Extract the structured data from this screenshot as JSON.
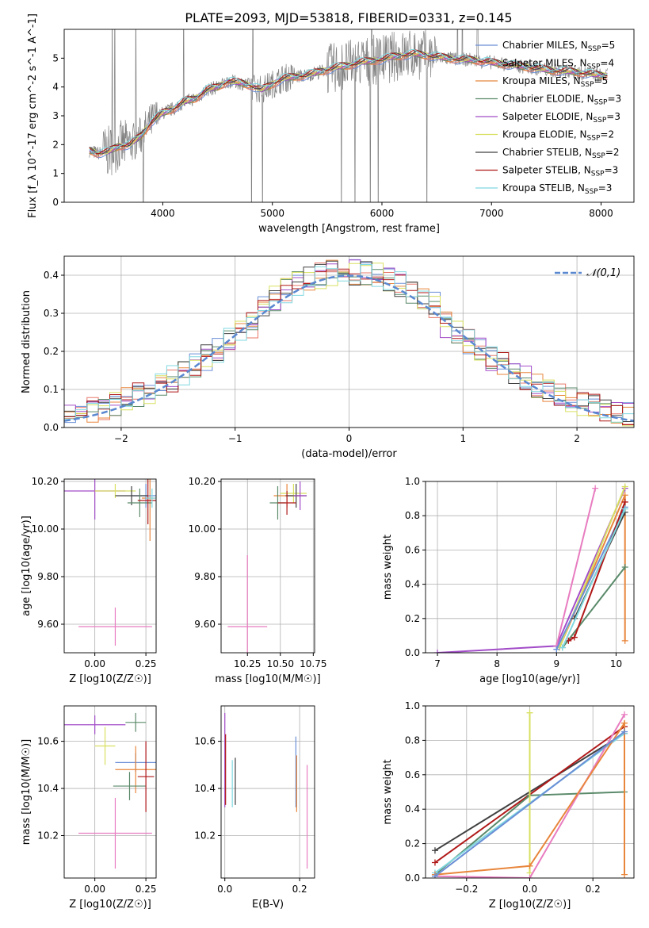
{
  "figure_title": "PLATE=2093, MJD=53818, FIBERID=0331, z=0.145",
  "colors": {
    "c0": "#6a8fd6",
    "c1": "#e8786a",
    "c2": "#e8863c",
    "c3": "#5a8a6a",
    "c4": "#a24cc8",
    "c5": "#d8e060",
    "c6": "#404040",
    "c7": "#b01818",
    "c8": "#80d8e0",
    "data": "#808080",
    "normal": "#5a88d0",
    "pink": "#e87cc0"
  },
  "chart_data": [
    {
      "id": "spectrum",
      "type": "line",
      "xlabel": "wavelength [Angstrom, rest frame]",
      "ylabel": "Flux [f_λ 10^-17 erg cm^-2 s^-1 A^-1]",
      "xlim": [
        3100,
        8300
      ],
      "ylim": [
        0,
        6
      ],
      "xticks": [
        4000,
        5000,
        6000,
        7000,
        8000
      ],
      "yticks": [
        0,
        1,
        2,
        3,
        4,
        5
      ],
      "grid": false,
      "legend_position": "top-right",
      "legend": [
        {
          "label": "Chabrier MILES, N_SSP=5",
          "color": "c0"
        },
        {
          "label": "Salpeter MILES, N_SSP=4",
          "color": "c1"
        },
        {
          "label": "Kroupa MILES, N_SSP=5",
          "color": "c2"
        },
        {
          "label": "Chabrier ELODIE, N_SSP=3",
          "color": "c3"
        },
        {
          "label": "Salpeter ELODIE, N_SSP=3",
          "color": "c4"
        },
        {
          "label": "Kroupa ELODIE, N_SSP=2",
          "color": "c5"
        },
        {
          "label": "Chabrier STELIB, N_SSP=2",
          "color": "c6"
        },
        {
          "label": "Salpeter STELIB, N_SSP=3",
          "color": "c7"
        },
        {
          "label": "Kroupa STELIB, N_SSP=3",
          "color": "c8"
        }
      ],
      "model_x": [
        3330,
        3400,
        3500,
        3600,
        3700,
        3800,
        3900,
        4000,
        4100,
        4200,
        4300,
        4400,
        4500,
        4600,
        4700,
        4800,
        4900,
        5000,
        5100,
        5200,
        5300,
        5400,
        5500,
        5600,
        5700,
        5800,
        5900,
        6000,
        6100,
        6200,
        6300,
        6400,
        6500,
        6600,
        6700,
        6800,
        6900,
        7000,
        7100,
        7200,
        7300,
        7400,
        7500,
        7600,
        7700,
        7800,
        7900,
        8000,
        8060
      ],
      "model_y": [
        1.8,
        1.7,
        1.75,
        1.95,
        2.0,
        2.3,
        2.8,
        3.1,
        3.25,
        3.5,
        3.6,
        3.9,
        4.0,
        4.2,
        4.15,
        4.05,
        3.9,
        4.1,
        4.3,
        4.35,
        4.4,
        4.5,
        4.6,
        4.7,
        4.75,
        4.85,
        4.9,
        4.95,
        5.05,
        5.1,
        5.15,
        5.1,
        5.05,
        5.0,
        4.95,
        4.95,
        4.9,
        4.85,
        4.8,
        4.75,
        4.7,
        4.65,
        4.6,
        4.55,
        4.55,
        4.5,
        4.45,
        4.4,
        4.4
      ]
    },
    {
      "id": "residuals",
      "type": "histogram",
      "xlabel": "(data-model)/error",
      "ylabel": "Normed distribution",
      "xlim": [
        -2.5,
        2.5
      ],
      "ylim": [
        0,
        0.45
      ],
      "xticks": [
        -2,
        -1,
        0,
        1,
        2
      ],
      "yticks": [
        0.0,
        0.1,
        0.2,
        0.3,
        0.4
      ],
      "grid": true,
      "legend_position": "top-right",
      "legend": [
        {
          "label": "𝒩(0,1)",
          "color": "normal"
        }
      ],
      "bin_width": 0.1
    },
    {
      "id": "age_vs_Z",
      "type": "scatter",
      "xlabel": "Z [log10(Z/Z☉)]",
      "ylabel": "age  [log10(age/yr)]",
      "xlim": [
        -0.15,
        0.3
      ],
      "ylim": [
        9.48,
        10.21
      ],
      "xticks": [
        0.0,
        0.25
      ],
      "yticks": [
        9.6,
        9.8,
        10.0,
        10.2
      ],
      "grid": true,
      "points": [
        {
          "x": 0.0,
          "y": 10.16,
          "xerr": 0.15,
          "yerr": 0.12,
          "color": "c4"
        },
        {
          "x": 0.1,
          "y": 10.16,
          "xerr": 0.1,
          "yerr": 0.03,
          "color": "c5"
        },
        {
          "x": 0.27,
          "y": 10.13,
          "xerr": 0.04,
          "yerr": 0.18,
          "color": "c2"
        },
        {
          "x": 0.25,
          "y": 10.14,
          "xerr": 0.07,
          "yerr": 0.05,
          "color": "c0"
        },
        {
          "x": 0.18,
          "y": 10.14,
          "xerr": 0.08,
          "yerr": 0.04,
          "color": "c6"
        },
        {
          "x": 0.22,
          "y": 10.11,
          "xerr": 0.06,
          "yerr": 0.06,
          "color": "c3"
        },
        {
          "x": 0.26,
          "y": 10.12,
          "xerr": 0.05,
          "yerr": 0.1,
          "color": "c7"
        },
        {
          "x": 0.28,
          "y": 10.13,
          "xerr": 0.03,
          "yerr": 0.04,
          "color": "c8"
        },
        {
          "x": 0.1,
          "y": 9.59,
          "xerr": 0.18,
          "yerr": 0.08,
          "color": "pink"
        }
      ]
    },
    {
      "id": "age_vs_mass",
      "type": "scatter",
      "xlabel": "mass [log10(M/M☉)]",
      "ylabel": "",
      "xlim": [
        10.05,
        10.76
      ],
      "ylim": [
        9.48,
        10.21
      ],
      "xticks": [
        10.25,
        10.5,
        10.75
      ],
      "yticks": [
        9.6,
        9.8,
        10.0,
        10.2
      ],
      "grid": true,
      "points": [
        {
          "x": 10.55,
          "y": 10.14,
          "xerr": 0.1,
          "yerr": 0.05,
          "color": "c2"
        },
        {
          "x": 10.6,
          "y": 10.15,
          "xerr": 0.1,
          "yerr": 0.04,
          "color": "c5"
        },
        {
          "x": 10.62,
          "y": 10.14,
          "xerr": 0.08,
          "yerr": 0.05,
          "color": "c6"
        },
        {
          "x": 10.48,
          "y": 10.11,
          "xerr": 0.06,
          "yerr": 0.07,
          "color": "c3"
        },
        {
          "x": 10.55,
          "y": 10.11,
          "xerr": 0.07,
          "yerr": 0.05,
          "color": "c7"
        },
        {
          "x": 10.65,
          "y": 10.14,
          "xerr": 0.05,
          "yerr": 0.06,
          "color": "c4"
        },
        {
          "x": 10.25,
          "y": 9.59,
          "xerr": 0.15,
          "yerr": 0.3,
          "color": "pink"
        }
      ]
    },
    {
      "id": "mass_weight_vs_age",
      "type": "line",
      "xlabel": "age  [log10(age/yr)]",
      "ylabel": "mass weight",
      "xlim": [
        6.8,
        10.3
      ],
      "ylim": [
        0,
        1
      ],
      "xticks": [
        7,
        8,
        9,
        10
      ],
      "yticks": [
        0.0,
        0.2,
        0.4,
        0.6,
        0.8,
        1.0
      ],
      "grid": true,
      "series": [
        {
          "color": "c4",
          "x": [
            7.0,
            9.0,
            10.15
          ],
          "y": [
            0.0,
            0.04,
            0.96
          ]
        },
        {
          "color": "pink",
          "x": [
            9.0,
            9.65
          ],
          "y": [
            0.04,
            0.96
          ]
        },
        {
          "color": "c2",
          "x": [
            9.05,
            10.15,
            10.15
          ],
          "y": [
            0.03,
            0.92,
            0.07
          ]
        },
        {
          "color": "c5",
          "x": [
            9.05,
            10.15
          ],
          "y": [
            0.03,
            0.97
          ]
        },
        {
          "color": "c3",
          "x": [
            9.1,
            10.15
          ],
          "y": [
            0.03,
            0.5
          ]
        },
        {
          "color": "c0",
          "x": [
            9.0,
            10.15
          ],
          "y": [
            0.02,
            0.85
          ]
        },
        {
          "color": "c6",
          "x": [
            9.3,
            10.15
          ],
          "y": [
            0.2,
            0.82
          ]
        },
        {
          "color": "c7",
          "x": [
            9.2,
            9.3,
            10.15
          ],
          "y": [
            0.07,
            0.09,
            0.88
          ]
        },
        {
          "color": "c8",
          "x": [
            9.1,
            10.15
          ],
          "y": [
            0.03,
            0.84
          ]
        }
      ]
    },
    {
      "id": "mass_vs_Z",
      "type": "scatter",
      "xlabel": "Z [log10(Z/Z☉)]",
      "ylabel": "mass [log10(M/M☉)]",
      "xlim": [
        -0.15,
        0.3
      ],
      "ylim": [
        10.02,
        10.75
      ],
      "xticks": [
        0.0,
        0.25
      ],
      "yticks": [
        10.2,
        10.4,
        10.6
      ],
      "grid": true,
      "points": [
        {
          "x": 0.0,
          "y": 10.67,
          "xerr": 0.15,
          "yerr": 0.04,
          "color": "c4"
        },
        {
          "x": 0.2,
          "y": 10.68,
          "xerr": 0.05,
          "yerr": 0.04,
          "color": "c3"
        },
        {
          "x": 0.05,
          "y": 10.58,
          "xerr": 0.05,
          "yerr": 0.08,
          "color": "c5"
        },
        {
          "x": 0.2,
          "y": 10.51,
          "xerr": 0.1,
          "yerr": 0.04,
          "color": "c0"
        },
        {
          "x": 0.2,
          "y": 10.48,
          "xerr": 0.1,
          "yerr": 0.1,
          "color": "c2"
        },
        {
          "x": 0.17,
          "y": 10.41,
          "xerr": 0.08,
          "yerr": 0.06,
          "color": "c3"
        },
        {
          "x": 0.25,
          "y": 10.45,
          "xerr": 0.04,
          "yerr": 0.15,
          "color": "c7"
        },
        {
          "x": 0.1,
          "y": 10.21,
          "xerr": 0.18,
          "yerr": 0.15,
          "color": "pink"
        }
      ]
    },
    {
      "id": "mass_vs_ebv",
      "type": "scatter",
      "xlabel": "E(B-V)",
      "ylabel": "",
      "xlim": [
        -0.01,
        0.24
      ],
      "ylim": [
        10.02,
        10.75
      ],
      "xticks": [
        0.0,
        0.2
      ],
      "yticks": [
        10.2,
        10.4,
        10.6
      ],
      "grid": true,
      "points": [
        {
          "x": 0.0,
          "y": 10.52,
          "yerr": 0.2,
          "color": "c4"
        },
        {
          "x": 0.002,
          "y": 10.48,
          "yerr": 0.15,
          "color": "c7"
        },
        {
          "x": 0.02,
          "y": 10.42,
          "yerr": 0.1,
          "color": "c8"
        },
        {
          "x": 0.028,
          "y": 10.43,
          "yerr": 0.1,
          "color": "c6"
        },
        {
          "x": 0.19,
          "y": 10.47,
          "yerr": 0.15,
          "color": "c0"
        },
        {
          "x": 0.192,
          "y": 10.42,
          "yerr": 0.12,
          "color": "c2"
        },
        {
          "x": 0.22,
          "y": 10.28,
          "yerr": 0.22,
          "color": "pink"
        }
      ]
    },
    {
      "id": "mass_weight_vs_Z",
      "type": "line",
      "xlabel": "Z [log10(Z/Z☉)]",
      "ylabel": "mass weight",
      "xlim": [
        -0.33,
        0.33
      ],
      "ylim": [
        0,
        1
      ],
      "xticks": [
        -0.2,
        0.0,
        0.2
      ],
      "yticks": [
        0.0,
        0.2,
        0.4,
        0.6,
        0.8,
        1.0
      ],
      "grid": true,
      "series": [
        {
          "color": "c6",
          "x": [
            -0.3,
            0.3
          ],
          "y": [
            0.16,
            0.84
          ]
        },
        {
          "color": "c7",
          "x": [
            -0.3,
            0.3
          ],
          "y": [
            0.09,
            0.88
          ]
        },
        {
          "color": "c3",
          "x": [
            -0.3,
            0.0,
            0.3
          ],
          "y": [
            0.02,
            0.48,
            0.5
          ]
        },
        {
          "color": "c8",
          "x": [
            -0.3,
            0.3
          ],
          "y": [
            0.03,
            0.84
          ]
        },
        {
          "color": "c5",
          "x": [
            0.0,
            0.0
          ],
          "y": [
            0.03,
            0.96
          ]
        },
        {
          "color": "pink",
          "x": [
            -0.3,
            0.0,
            0.3
          ],
          "y": [
            0.01,
            0.0,
            0.95
          ]
        },
        {
          "color": "c2",
          "x": [
            -0.3,
            0.0,
            0.3,
            0.3
          ],
          "y": [
            0.02,
            0.07,
            0.9,
            0.02
          ]
        },
        {
          "color": "c0",
          "x": [
            -0.3,
            0.3
          ],
          "y": [
            0.01,
            0.85
          ]
        }
      ]
    }
  ]
}
